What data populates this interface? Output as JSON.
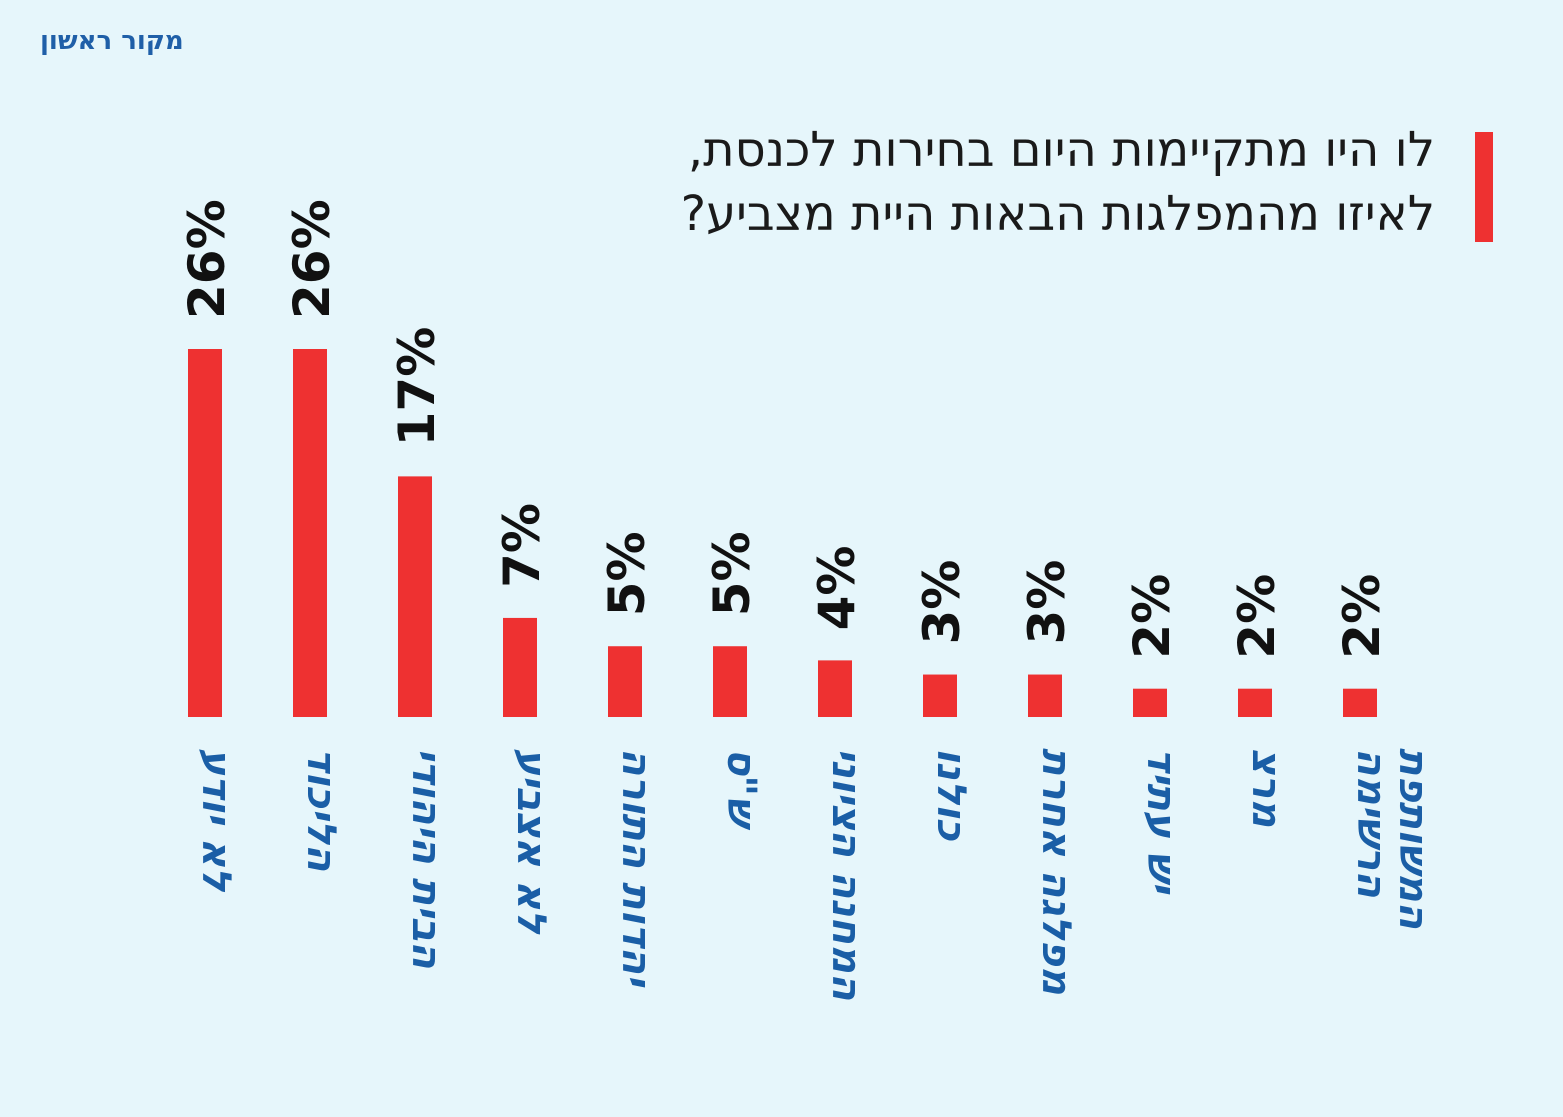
{
  "brand": "מקור ראשון",
  "title_lines": [
    "לו היו מתקיימות היום בחירות לכנסת,",
    "לאיזו מהמפלגות הבאות היית מצביע?"
  ],
  "colors": {
    "background": "#e6f6fb",
    "bar": "#ee3131",
    "category_text": "#1a5ea6",
    "value_text": "#111111",
    "title_text": "#1a1a1a",
    "brand": "#1f5fa8"
  },
  "chart_data": {
    "type": "bar",
    "title": "לו היו מתקיימות היום בחירות לכנסת, לאיזו מהמפלגות הבאות היית מצביע?",
    "xlabel": "",
    "ylabel": "",
    "unit": "%",
    "categories": [
      [
        "לא יודע"
      ],
      [
        "הליכוד"
      ],
      [
        "הבית היהודי"
      ],
      [
        "לא אצביע"
      ],
      [
        "יהדות התורה"
      ],
      [
        "ש\"ס"
      ],
      [
        "המחנה הציוני"
      ],
      [
        "כולנו"
      ],
      [
        "מפלגה אחרת"
      ],
      [
        "יש עתיד"
      ],
      [
        "מרצ"
      ],
      [
        "הרשימה",
        "המשותפת"
      ]
    ],
    "values": [
      26,
      26,
      17,
      7,
      5,
      5,
      4,
      3,
      3,
      2,
      2,
      2
    ],
    "value_labels": [
      "26%",
      "26%",
      "17%",
      "7%",
      "5%",
      "5%",
      "4%",
      "3%",
      "3%",
      "2%",
      "2%",
      "2%"
    ],
    "ylim": [
      0,
      26
    ],
    "grid": false,
    "legend": "none",
    "orientation": "vertical bars, rotated labels"
  }
}
